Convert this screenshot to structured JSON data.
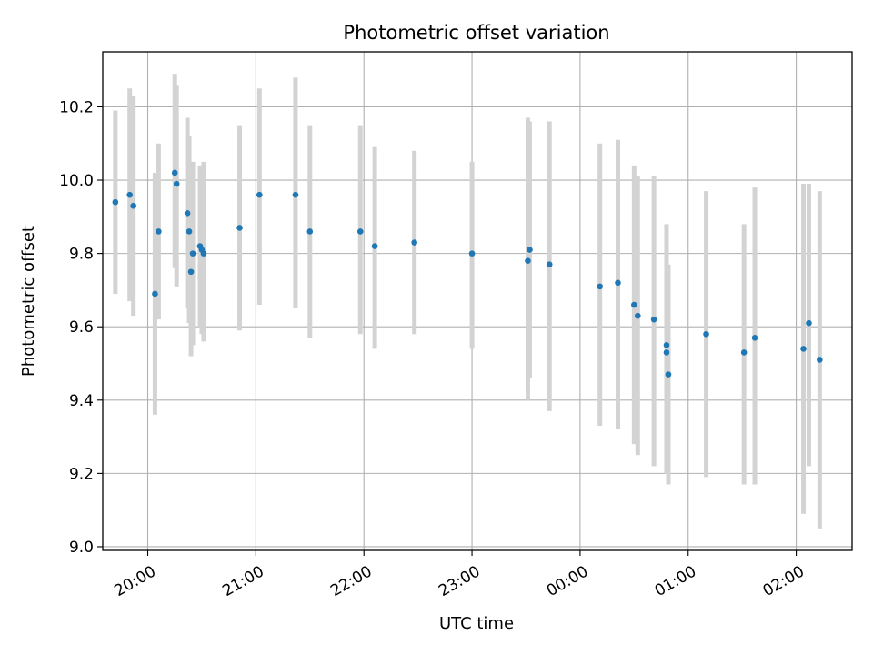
{
  "chart_data": {
    "type": "scatter",
    "title": "Photometric offset variation",
    "xlabel": "UTC time",
    "ylabel": "Photometric offset",
    "grid": true,
    "xlim": [
      "19:35",
      "02:31"
    ],
    "ylim": [
      8.99,
      10.35
    ],
    "x_ticks": [
      "20:00",
      "21:00",
      "22:00",
      "23:00",
      "00:00",
      "01:00",
      "02:00"
    ],
    "y_ticks": [
      "9.0",
      "9.2",
      "9.4",
      "9.6",
      "9.8",
      "10.0",
      "10.2"
    ],
    "colors": {
      "point": "#1f77b4",
      "errorbar": "#d3d3d3",
      "grid": "#b0b0b0"
    },
    "points": [
      {
        "x": "19:42",
        "y": 9.94,
        "ylow": 9.69,
        "yhigh": 10.19
      },
      {
        "x": "19:50",
        "y": 9.96,
        "ylow": 9.67,
        "yhigh": 10.25
      },
      {
        "x": "19:52",
        "y": 9.93,
        "ylow": 9.63,
        "yhigh": 10.23
      },
      {
        "x": "20:04",
        "y": 9.69,
        "ylow": 9.36,
        "yhigh": 10.02
      },
      {
        "x": "20:06",
        "y": 9.86,
        "ylow": 9.62,
        "yhigh": 10.1
      },
      {
        "x": "20:15",
        "y": 10.02,
        "ylow": 9.76,
        "yhigh": 10.29
      },
      {
        "x": "20:16",
        "y": 9.99,
        "ylow": 9.71,
        "yhigh": 10.26
      },
      {
        "x": "20:22",
        "y": 9.91,
        "ylow": 9.65,
        "yhigh": 10.17
      },
      {
        "x": "20:23",
        "y": 9.86,
        "ylow": 9.61,
        "yhigh": 10.12
      },
      {
        "x": "20:24",
        "y": 9.75,
        "ylow": 9.52,
        "yhigh": 9.98
      },
      {
        "x": "20:25",
        "y": 9.8,
        "ylow": 9.55,
        "yhigh": 10.05
      },
      {
        "x": "20:29",
        "y": 9.82,
        "ylow": 9.6,
        "yhigh": 10.04
      },
      {
        "x": "20:30",
        "y": 9.81,
        "ylow": 9.58,
        "yhigh": 10.04
      },
      {
        "x": "20:31",
        "y": 9.8,
        "ylow": 9.56,
        "yhigh": 10.05
      },
      {
        "x": "20:51",
        "y": 9.87,
        "ylow": 9.59,
        "yhigh": 10.15
      },
      {
        "x": "21:02",
        "y": 9.96,
        "ylow": 9.66,
        "yhigh": 10.25
      },
      {
        "x": "21:22",
        "y": 9.96,
        "ylow": 9.65,
        "yhigh": 10.28
      },
      {
        "x": "21:30",
        "y": 9.86,
        "ylow": 9.57,
        "yhigh": 10.15
      },
      {
        "x": "21:58",
        "y": 9.86,
        "ylow": 9.58,
        "yhigh": 10.15
      },
      {
        "x": "22:06",
        "y": 9.82,
        "ylow": 9.54,
        "yhigh": 10.09
      },
      {
        "x": "22:28",
        "y": 9.83,
        "ylow": 9.58,
        "yhigh": 10.08
      },
      {
        "x": "23:00",
        "y": 9.8,
        "ylow": 9.54,
        "yhigh": 10.05
      },
      {
        "x": "23:31",
        "y": 9.78,
        "ylow": 9.4,
        "yhigh": 10.17
      },
      {
        "x": "23:32",
        "y": 9.81,
        "ylow": 9.46,
        "yhigh": 10.16
      },
      {
        "x": "23:43",
        "y": 9.77,
        "ylow": 9.37,
        "yhigh": 10.16
      },
      {
        "x": "00:11",
        "y": 9.71,
        "ylow": 9.33,
        "yhigh": 10.1
      },
      {
        "x": "00:21",
        "y": 9.72,
        "ylow": 9.32,
        "yhigh": 10.11
      },
      {
        "x": "00:30",
        "y": 9.66,
        "ylow": 9.28,
        "yhigh": 10.04
      },
      {
        "x": "00:32",
        "y": 9.63,
        "ylow": 9.25,
        "yhigh": 10.01
      },
      {
        "x": "00:41",
        "y": 9.62,
        "ylow": 9.22,
        "yhigh": 10.01
      },
      {
        "x": "00:48",
        "y": 9.53,
        "ylow": 9.2,
        "yhigh": 9.86
      },
      {
        "x": "00:48",
        "y": 9.55,
        "ylow": 9.22,
        "yhigh": 9.88
      },
      {
        "x": "00:49",
        "y": 9.47,
        "ylow": 9.17,
        "yhigh": 9.77
      },
      {
        "x": "01:10",
        "y": 9.58,
        "ylow": 9.19,
        "yhigh": 9.97
      },
      {
        "x": "01:31",
        "y": 9.53,
        "ylow": 9.17,
        "yhigh": 9.88
      },
      {
        "x": "01:37",
        "y": 9.57,
        "ylow": 9.17,
        "yhigh": 9.98
      },
      {
        "x": "02:04",
        "y": 9.54,
        "ylow": 9.09,
        "yhigh": 9.99
      },
      {
        "x": "02:07",
        "y": 9.61,
        "ylow": 9.22,
        "yhigh": 9.99
      },
      {
        "x": "02:13",
        "y": 9.51,
        "ylow": 9.05,
        "yhigh": 9.97
      }
    ]
  }
}
